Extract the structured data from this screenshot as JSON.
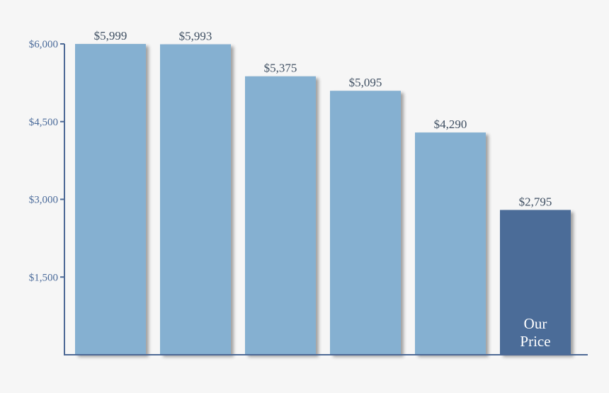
{
  "colors": {
    "background": "#f6f6f6",
    "bar": "#85b0d1",
    "bar_highlight": "#4c6c98",
    "axis": "#4e6a96",
    "tick_text": "#4a6a9a",
    "value_text": "#3f4f62",
    "inbar_text": "#ffffff"
  },
  "chart_data": {
    "type": "bar",
    "categories": [
      "",
      "",
      "",
      "",
      "",
      "Our Price"
    ],
    "values": [
      5999,
      5993,
      5375,
      5095,
      4290,
      2795
    ],
    "value_labels": [
      "$5,999",
      "$5,993",
      "$5,375",
      "$5,095",
      "$4,290",
      "$2,795"
    ],
    "highlight_index": 5,
    "highlight_label_lines": [
      "Our",
      "Price"
    ],
    "yticks": [
      1500,
      3000,
      4500,
      6000
    ],
    "ytick_labels": [
      "$1,500",
      "$3,000",
      "$4,500",
      "$6,000"
    ],
    "ylim": [
      0,
      6000
    ],
    "title": "",
    "xlabel": "",
    "ylabel": "",
    "grid": false,
    "legend": "none"
  }
}
